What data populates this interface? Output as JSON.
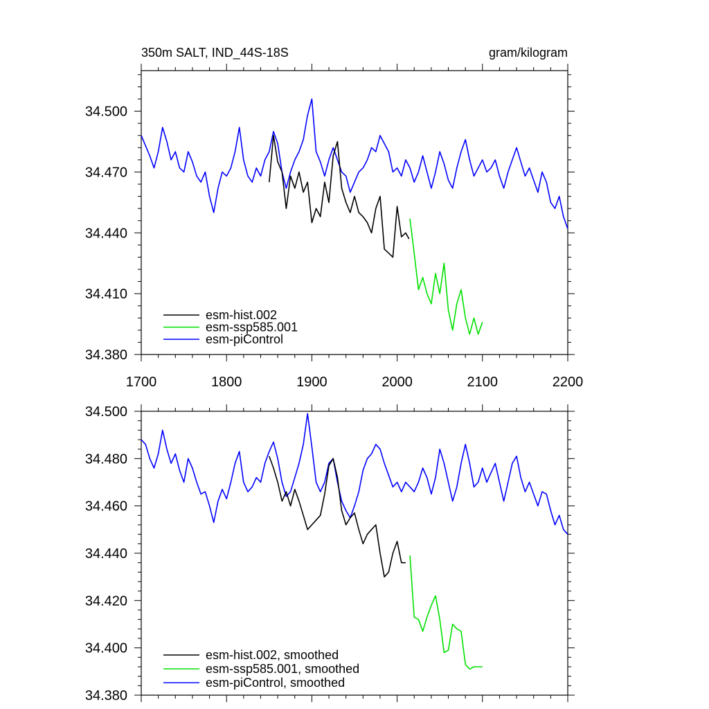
{
  "colors": {
    "hist": "#000000",
    "ssp": "#00e000",
    "picontrol": "#0000ff"
  },
  "chart_data": [
    {
      "type": "line",
      "title": "350m SALT, IND_44S-18S",
      "units": "gram/kilogram",
      "xlim": [
        1700,
        2200
      ],
      "ylim": [
        34.38,
        34.52
      ],
      "x_ticks": [
        "1700",
        "1800",
        "1900",
        "2000",
        "2100",
        "2200"
      ],
      "y_ticks": [
        {
          "value": 34.38,
          "label": "34.380"
        },
        {
          "value": 34.41,
          "label": "34.410"
        },
        {
          "value": 34.44,
          "label": "34.440"
        },
        {
          "value": 34.47,
          "label": "34.470"
        },
        {
          "value": 34.5,
          "label": "34.500"
        }
      ],
      "legend": [
        "esm-hist.002",
        "esm-ssp585.001",
        "esm-piControl"
      ],
      "legend_position": "bottom-left",
      "series": [
        {
          "name": "esm-hist.002",
          "color_key": "hist",
          "x": [
            1850,
            1855,
            1860,
            1865,
            1870,
            1875,
            1880,
            1885,
            1890,
            1895,
            1900,
            1905,
            1910,
            1915,
            1920,
            1925,
            1930,
            1935,
            1940,
            1945,
            1950,
            1955,
            1960,
            1965,
            1970,
            1975,
            1980,
            1985,
            1990,
            1995,
            2000,
            2005,
            2010,
            2014
          ],
          "y": [
            34.465,
            34.488,
            34.475,
            34.47,
            34.452,
            34.468,
            34.462,
            34.47,
            34.46,
            34.465,
            34.445,
            34.452,
            34.448,
            34.465,
            34.455,
            34.478,
            34.485,
            34.462,
            34.455,
            34.45,
            34.458,
            34.45,
            34.448,
            34.445,
            34.44,
            34.452,
            34.458,
            34.432,
            34.43,
            34.428,
            34.453,
            34.438,
            34.44,
            34.437
          ]
        },
        {
          "name": "esm-ssp585.001",
          "color_key": "ssp",
          "x": [
            2015,
            2020,
            2025,
            2030,
            2035,
            2040,
            2045,
            2050,
            2055,
            2060,
            2065,
            2070,
            2075,
            2080,
            2085,
            2090,
            2095,
            2100
          ],
          "y": [
            34.447,
            34.43,
            34.412,
            34.418,
            34.41,
            34.405,
            34.42,
            34.41,
            34.425,
            34.402,
            34.392,
            34.405,
            34.412,
            34.398,
            34.39,
            34.398,
            34.39,
            34.396
          ]
        },
        {
          "name": "esm-piControl",
          "color_key": "picontrol",
          "x": [
            1700,
            1705,
            1710,
            1715,
            1720,
            1725,
            1730,
            1735,
            1740,
            1745,
            1750,
            1755,
            1760,
            1765,
            1770,
            1775,
            1780,
            1785,
            1790,
            1795,
            1800,
            1805,
            1810,
            1815,
            1820,
            1825,
            1830,
            1835,
            1840,
            1845,
            1850,
            1855,
            1860,
            1865,
            1870,
            1875,
            1880,
            1885,
            1890,
            1895,
            1900,
            1905,
            1910,
            1915,
            1920,
            1925,
            1930,
            1935,
            1940,
            1945,
            1950,
            1955,
            1960,
            1965,
            1970,
            1975,
            1980,
            1985,
            1990,
            1995,
            2000,
            2005,
            2010,
            2015,
            2020,
            2025,
            2030,
            2035,
            2040,
            2045,
            2050,
            2055,
            2060,
            2065,
            2070,
            2075,
            2080,
            2085,
            2090,
            2095,
            2100,
            2105,
            2110,
            2115,
            2120,
            2125,
            2130,
            2135,
            2140,
            2145,
            2150,
            2155,
            2160,
            2165,
            2170,
            2175,
            2180,
            2185,
            2190,
            2195,
            2200
          ],
          "y": [
            34.488,
            34.483,
            34.478,
            34.472,
            34.48,
            34.492,
            34.485,
            34.476,
            34.48,
            34.472,
            34.47,
            34.48,
            34.475,
            34.468,
            34.465,
            34.47,
            34.458,
            34.45,
            34.462,
            34.47,
            34.468,
            34.472,
            34.48,
            34.492,
            34.476,
            34.468,
            34.465,
            34.472,
            34.468,
            34.476,
            34.48,
            34.49,
            34.484,
            34.47,
            34.462,
            34.47,
            34.476,
            34.48,
            34.486,
            34.498,
            34.506,
            34.48,
            34.475,
            34.468,
            34.476,
            34.482,
            34.476,
            34.47,
            34.468,
            34.46,
            34.465,
            34.47,
            34.472,
            34.476,
            34.482,
            34.48,
            34.488,
            34.484,
            34.48,
            34.47,
            34.472,
            34.468,
            34.476,
            34.472,
            34.465,
            34.47,
            34.478,
            34.47,
            34.462,
            34.47,
            34.48,
            34.474,
            34.466,
            34.462,
            34.472,
            34.48,
            34.486,
            34.476,
            34.468,
            34.472,
            34.476,
            34.47,
            34.472,
            34.476,
            34.468,
            34.462,
            34.47,
            34.476,
            34.482,
            34.475,
            34.468,
            34.472,
            34.466,
            34.46,
            34.47,
            34.465,
            34.455,
            34.452,
            34.458,
            34.448,
            34.442
          ]
        }
      ]
    },
    {
      "type": "line",
      "xlim": [
        1700,
        2200
      ],
      "ylim": [
        34.38,
        34.5
      ],
      "y_ticks": [
        {
          "value": 34.38,
          "label": "34.380"
        },
        {
          "value": 34.4,
          "label": "34.400"
        },
        {
          "value": 34.42,
          "label": "34.420"
        },
        {
          "value": 34.44,
          "label": "34.440"
        },
        {
          "value": 34.46,
          "label": "34.460"
        },
        {
          "value": 34.48,
          "label": "34.480"
        },
        {
          "value": 34.5,
          "label": "34.500"
        }
      ],
      "legend": [
        "esm-hist.002, smoothed",
        "esm-ssp585.001, smoothed",
        "esm-piControl, smoothed"
      ],
      "legend_position": "bottom-left",
      "series": [
        {
          "name": "esm-hist.002, smoothed",
          "color_key": "hist",
          "x": [
            1850,
            1855,
            1860,
            1865,
            1870,
            1875,
            1880,
            1885,
            1890,
            1895,
            1900,
            1905,
            1910,
            1915,
            1920,
            1925,
            1930,
            1935,
            1940,
            1945,
            1950,
            1955,
            1960,
            1965,
            1970,
            1975,
            1980,
            1985,
            1990,
            1995,
            2000,
            2005,
            2010
          ],
          "y": [
            34.481,
            34.476,
            34.47,
            34.462,
            34.466,
            34.46,
            34.467,
            34.462,
            34.456,
            34.45,
            34.452,
            34.454,
            34.456,
            34.465,
            34.477,
            34.48,
            34.472,
            34.458,
            34.452,
            34.455,
            34.457,
            34.45,
            34.444,
            34.448,
            34.45,
            34.452,
            34.44,
            34.43,
            34.432,
            34.44,
            34.445,
            34.436,
            34.436
          ]
        },
        {
          "name": "esm-ssp585.001, smoothed",
          "color_key": "ssp",
          "x": [
            2015,
            2020,
            2025,
            2030,
            2035,
            2040,
            2045,
            2050,
            2055,
            2060,
            2065,
            2070,
            2075,
            2080,
            2085,
            2090,
            2095,
            2100
          ],
          "y": [
            34.439,
            34.413,
            34.412,
            34.407,
            34.413,
            34.418,
            34.422,
            34.412,
            34.398,
            34.399,
            34.41,
            34.408,
            34.407,
            34.393,
            34.391,
            34.392,
            34.392,
            34.392
          ]
        },
        {
          "name": "esm-piControl, smoothed",
          "color_key": "picontrol",
          "x": [
            1700,
            1705,
            1710,
            1715,
            1720,
            1725,
            1730,
            1735,
            1740,
            1745,
            1750,
            1755,
            1760,
            1765,
            1770,
            1775,
            1780,
            1785,
            1790,
            1795,
            1800,
            1805,
            1810,
            1815,
            1820,
            1825,
            1830,
            1835,
            1840,
            1845,
            1850,
            1855,
            1860,
            1865,
            1870,
            1875,
            1880,
            1885,
            1890,
            1895,
            1900,
            1905,
            1910,
            1915,
            1920,
            1925,
            1930,
            1935,
            1940,
            1945,
            1950,
            1955,
            1960,
            1965,
            1970,
            1975,
            1980,
            1985,
            1990,
            1995,
            2000,
            2005,
            2010,
            2015,
            2020,
            2025,
            2030,
            2035,
            2040,
            2045,
            2050,
            2055,
            2060,
            2065,
            2070,
            2075,
            2080,
            2085,
            2090,
            2095,
            2100,
            2105,
            2110,
            2115,
            2120,
            2125,
            2130,
            2135,
            2140,
            2145,
            2150,
            2155,
            2160,
            2165,
            2170,
            2175,
            2180,
            2185,
            2190,
            2195,
            2200
          ],
          "y": [
            34.488,
            34.486,
            34.48,
            34.476,
            34.482,
            34.492,
            34.484,
            34.478,
            34.482,
            34.475,
            34.47,
            34.48,
            34.476,
            34.47,
            34.465,
            34.466,
            34.46,
            34.453,
            34.462,
            34.467,
            34.463,
            34.47,
            34.478,
            34.483,
            34.47,
            34.466,
            34.468,
            34.472,
            34.47,
            34.478,
            34.483,
            34.487,
            34.48,
            34.47,
            34.464,
            34.466,
            34.472,
            34.478,
            34.486,
            34.499,
            34.485,
            34.47,
            34.466,
            34.47,
            34.478,
            34.48,
            34.47,
            34.462,
            34.458,
            34.455,
            34.46,
            34.466,
            34.475,
            34.48,
            34.482,
            34.486,
            34.484,
            34.478,
            34.473,
            34.468,
            34.47,
            34.466,
            34.47,
            34.468,
            34.466,
            34.47,
            34.476,
            34.472,
            34.465,
            34.472,
            34.484,
            34.478,
            34.47,
            34.462,
            34.468,
            34.478,
            34.486,
            34.478,
            34.468,
            34.47,
            34.476,
            34.47,
            34.474,
            34.478,
            34.47,
            34.462,
            34.47,
            34.478,
            34.481,
            34.472,
            34.466,
            34.47,
            34.465,
            34.46,
            34.466,
            34.465,
            34.458,
            34.452,
            34.456,
            34.45,
            34.448
          ]
        }
      ]
    }
  ]
}
